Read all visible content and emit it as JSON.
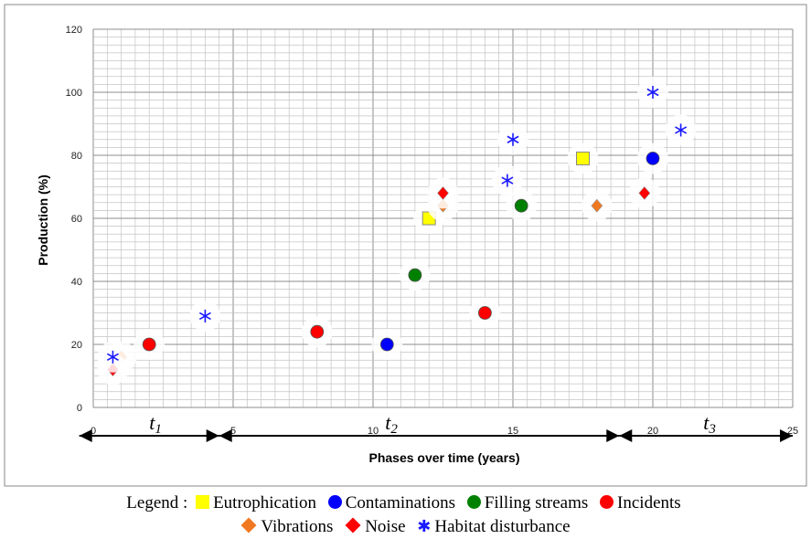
{
  "chart_data": {
    "type": "scatter",
    "title": "",
    "xlabel": "Phases  over time (years)",
    "ylabel": "Production (%)",
    "xlim": [
      0,
      25
    ],
    "ylim": [
      0,
      120
    ],
    "x_ticks": [
      "0",
      "5",
      "10",
      "15",
      "20",
      "25"
    ],
    "y_ticks": [
      "0",
      "20",
      "40",
      "60",
      "80",
      "100",
      "120"
    ],
    "grid": true,
    "series": [
      {
        "name": "Eutrophication",
        "marker": "square",
        "color": "#ffff00",
        "points": [
          {
            "x": 12,
            "y": 60
          },
          {
            "x": 17.5,
            "y": 79
          }
        ]
      },
      {
        "name": "Contaminations",
        "marker": "circle",
        "color": "#0000ff",
        "points": [
          {
            "x": 10.5,
            "y": 20
          },
          {
            "x": 20,
            "y": 79
          }
        ]
      },
      {
        "name": "Filling streams",
        "marker": "circle",
        "color": "#008000",
        "points": [
          {
            "x": 11.5,
            "y": 42
          },
          {
            "x": 15.3,
            "y": 64
          }
        ]
      },
      {
        "name": "Incidents",
        "marker": "circle",
        "color": "#ff0000",
        "points": [
          {
            "x": 2,
            "y": 20
          },
          {
            "x": 8,
            "y": 24
          },
          {
            "x": 14,
            "y": 30
          }
        ]
      },
      {
        "name": "Vibrations",
        "marker": "diamond",
        "color": "#f07820",
        "points": [
          {
            "x": 1,
            "y": 16
          },
          {
            "x": 12.5,
            "y": 64
          },
          {
            "x": 18,
            "y": 64
          }
        ]
      },
      {
        "name": "Noise",
        "marker": "diamond",
        "color": "#ff0000",
        "points": [
          {
            "x": 0.7,
            "y": 12
          },
          {
            "x": 12.5,
            "y": 68
          },
          {
            "x": 19.7,
            "y": 68
          }
        ]
      },
      {
        "name": "Habitat disturbance",
        "marker": "star",
        "color": "#1a1aff",
        "points": [
          {
            "x": 0.7,
            "y": 16
          },
          {
            "x": 4,
            "y": 29
          },
          {
            "x": 14.8,
            "y": 72
          },
          {
            "x": 15,
            "y": 85
          },
          {
            "x": 20,
            "y": 100
          },
          {
            "x": 21,
            "y": 88
          }
        ]
      }
    ],
    "phases": [
      {
        "label": "t1",
        "from": -0.5,
        "to": 4.5
      },
      {
        "label": "t2",
        "from": 4.5,
        "to": 18.8
      },
      {
        "label": "t3",
        "from": 18.8,
        "to": 25
      }
    ]
  },
  "legend": {
    "prefix": "Legend : ",
    "row1": [
      {
        "label": "Eutrophication",
        "symbol": "square",
        "color": "#ffff00"
      },
      {
        "label": "Contaminations",
        "symbol": "circle",
        "color": "#0000ff"
      },
      {
        "label": "Filling streams",
        "symbol": "circle",
        "color": "#008000"
      },
      {
        "label": "Incidents",
        "symbol": "circle",
        "color": "#ff0000"
      }
    ],
    "row2": [
      {
        "label": "Vibrations",
        "symbol": "diamond",
        "color": "#f07820"
      },
      {
        "label": "Noise",
        "symbol": "diamond",
        "color": "#ff0000"
      },
      {
        "label": "Habitat disturbance",
        "symbol": "star",
        "color": "#1a1aff"
      }
    ]
  }
}
